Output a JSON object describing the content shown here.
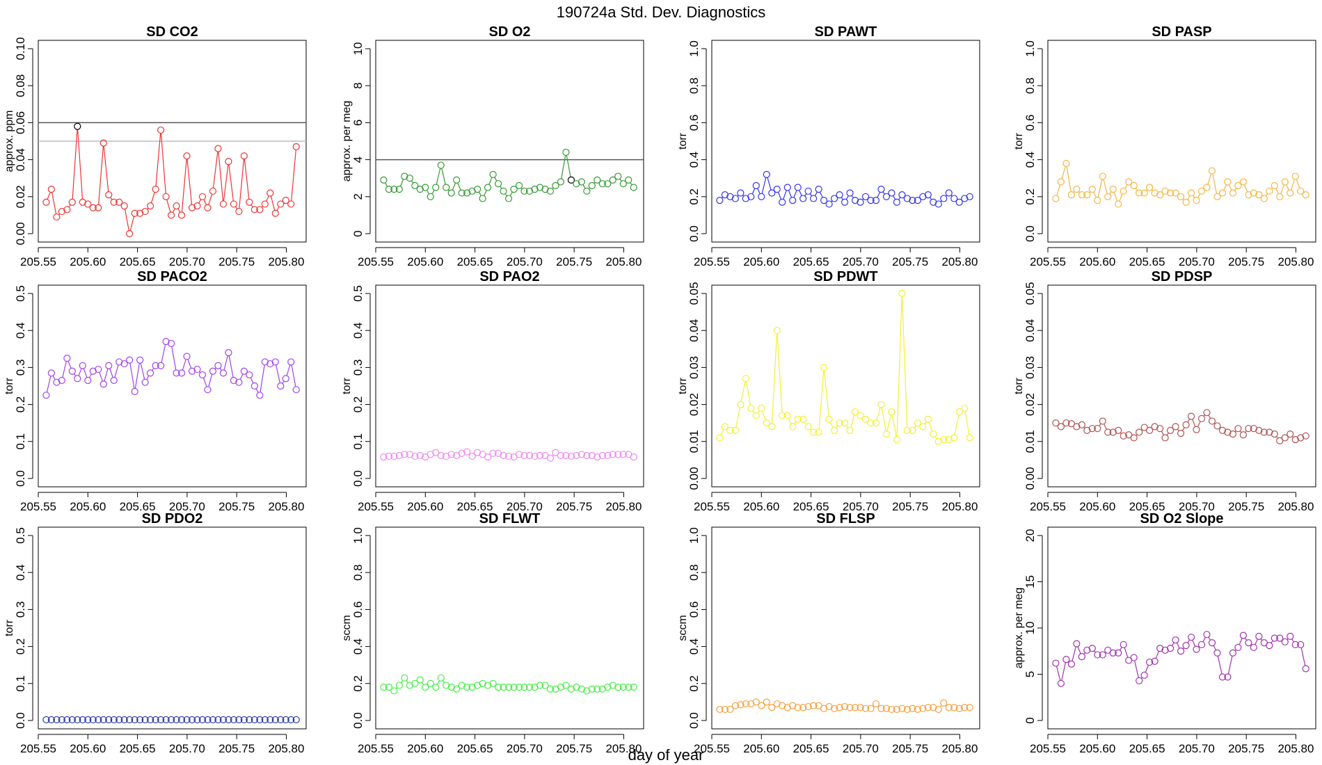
{
  "figure": {
    "title": "190724a   Std. Dev. Diagnostics",
    "xlabel": "day of year"
  },
  "chart_data": [
    {
      "type": "line",
      "title": "SD CO2",
      "ylabel": "approx. ppm",
      "color": "#ee3333",
      "xlim": [
        205.55,
        205.82
      ],
      "ylim": [
        0,
        0.1
      ],
      "xticks": [
        "205.55",
        "205.60",
        "205.65",
        "205.70",
        "205.75",
        "205.80"
      ],
      "yticks": [
        "0.00",
        "0.02",
        "0.04",
        "0.06",
        "0.08",
        "0.10"
      ],
      "hlines": [
        {
          "value": 0.06,
          "color": "#555555"
        },
        {
          "value": 0.05,
          "color": "#bbbbbb"
        }
      ],
      "highlight": {
        "index": 6,
        "color": "#000000"
      },
      "x_start": 205.558,
      "x_step": 0.00525,
      "values": [
        0.017,
        0.024,
        0.009,
        0.012,
        0.013,
        0.017,
        0.058,
        0.017,
        0.016,
        0.014,
        0.014,
        0.049,
        0.021,
        0.017,
        0.017,
        0.015,
        0.0,
        0.011,
        0.011,
        0.012,
        0.015,
        0.024,
        0.056,
        0.02,
        0.01,
        0.015,
        0.01,
        0.042,
        0.014,
        0.015,
        0.02,
        0.014,
        0.023,
        0.046,
        0.016,
        0.039,
        0.016,
        0.012,
        0.042,
        0.017,
        0.013,
        0.013,
        0.016,
        0.022,
        0.011,
        0.016,
        0.018,
        0.016,
        0.047
      ]
    },
    {
      "type": "line",
      "title": "SD O2",
      "ylabel": "approx. per meg",
      "color": "#339933",
      "xlim": [
        205.55,
        205.82
      ],
      "ylim": [
        0,
        10
      ],
      "xticks": [
        "205.55",
        "205.60",
        "205.65",
        "205.70",
        "205.75",
        "205.80"
      ],
      "yticks": [
        "0",
        "2",
        "4",
        "6",
        "8",
        "10"
      ],
      "hlines": [
        {
          "value": 4,
          "color": "#555555"
        }
      ],
      "highlight": {
        "index": 36,
        "color": "#000000"
      },
      "x_start": 205.558,
      "x_step": 0.00525,
      "values": [
        2.9,
        2.4,
        2.4,
        2.4,
        3.1,
        3.0,
        2.6,
        2.4,
        2.5,
        2.0,
        2.5,
        3.7,
        2.5,
        2.2,
        2.9,
        2.2,
        2.2,
        2.3,
        2.4,
        1.9,
        2.5,
        3.2,
        2.7,
        2.3,
        1.9,
        2.4,
        2.6,
        2.3,
        2.3,
        2.4,
        2.5,
        2.4,
        2.3,
        2.6,
        2.8,
        4.4,
        2.9,
        2.7,
        2.8,
        2.3,
        2.6,
        2.9,
        2.7,
        2.7,
        2.9,
        3.1,
        2.7,
        2.9,
        2.5
      ]
    },
    {
      "type": "line",
      "title": "SD PAWT",
      "ylabel": "torr",
      "color": "#3333ee",
      "xlim": [
        205.55,
        205.82
      ],
      "ylim": [
        0,
        1
      ],
      "xticks": [
        "205.55",
        "205.60",
        "205.65",
        "205.70",
        "205.75",
        "205.80"
      ],
      "yticks": [
        "0.0",
        "0.2",
        "0.4",
        "0.6",
        "0.8",
        "1.0"
      ],
      "hlines": [],
      "x_start": 205.558,
      "x_step": 0.00525,
      "values": [
        0.18,
        0.21,
        0.2,
        0.19,
        0.22,
        0.19,
        0.2,
        0.26,
        0.2,
        0.32,
        0.22,
        0.24,
        0.17,
        0.25,
        0.18,
        0.25,
        0.19,
        0.23,
        0.19,
        0.24,
        0.18,
        0.16,
        0.19,
        0.21,
        0.17,
        0.22,
        0.18,
        0.17,
        0.2,
        0.18,
        0.18,
        0.24,
        0.2,
        0.22,
        0.17,
        0.21,
        0.19,
        0.18,
        0.18,
        0.2,
        0.21,
        0.17,
        0.16,
        0.19,
        0.22,
        0.19,
        0.17,
        0.19,
        0.2
      ]
    },
    {
      "type": "line",
      "title": "SD PASP",
      "ylabel": "torr",
      "color": "#f5b540",
      "xlim": [
        205.55,
        205.82
      ],
      "ylim": [
        0,
        1
      ],
      "xticks": [
        "205.55",
        "205.60",
        "205.65",
        "205.70",
        "205.75",
        "205.80"
      ],
      "yticks": [
        "0.0",
        "0.2",
        "0.4",
        "0.6",
        "0.8",
        "1.0"
      ],
      "hlines": [],
      "x_start": 205.558,
      "x_step": 0.00525,
      "values": [
        0.19,
        0.28,
        0.38,
        0.21,
        0.24,
        0.21,
        0.21,
        0.24,
        0.18,
        0.31,
        0.2,
        0.24,
        0.16,
        0.23,
        0.28,
        0.26,
        0.22,
        0.22,
        0.25,
        0.22,
        0.21,
        0.23,
        0.22,
        0.22,
        0.2,
        0.17,
        0.22,
        0.18,
        0.23,
        0.25,
        0.34,
        0.2,
        0.22,
        0.28,
        0.22,
        0.26,
        0.28,
        0.21,
        0.22,
        0.21,
        0.19,
        0.23,
        0.26,
        0.2,
        0.28,
        0.22,
        0.31,
        0.23,
        0.21
      ]
    },
    {
      "type": "line",
      "title": "SD PACO2",
      "ylabel": "torr",
      "color": "#a040ee",
      "xlim": [
        205.55,
        205.82
      ],
      "ylim": [
        0,
        0.5
      ],
      "xticks": [
        "205.55",
        "205.60",
        "205.65",
        "205.70",
        "205.75",
        "205.80"
      ],
      "yticks": [
        "0.0",
        "0.1",
        "0.2",
        "0.3",
        "0.4",
        "0.5"
      ],
      "hlines": [],
      "x_start": 205.558,
      "x_step": 0.00525,
      "values": [
        0.225,
        0.285,
        0.26,
        0.265,
        0.325,
        0.29,
        0.27,
        0.305,
        0.265,
        0.29,
        0.295,
        0.255,
        0.305,
        0.265,
        0.315,
        0.31,
        0.32,
        0.235,
        0.32,
        0.26,
        0.285,
        0.305,
        0.305,
        0.37,
        0.365,
        0.285,
        0.285,
        0.33,
        0.29,
        0.295,
        0.28,
        0.24,
        0.29,
        0.305,
        0.285,
        0.34,
        0.265,
        0.26,
        0.29,
        0.28,
        0.25,
        0.225,
        0.315,
        0.31,
        0.315,
        0.25,
        0.27,
        0.315,
        0.24
      ]
    },
    {
      "type": "line",
      "title": "SD PAO2",
      "ylabel": "torr",
      "color": "#ee88ee",
      "xlim": [
        205.55,
        205.82
      ],
      "ylim": [
        0,
        0.5
      ],
      "xticks": [
        "205.55",
        "205.60",
        "205.65",
        "205.70",
        "205.75",
        "205.80"
      ],
      "yticks": [
        "0.0",
        "0.1",
        "0.2",
        "0.3",
        "0.4",
        "0.5"
      ],
      "hlines": [],
      "x_start": 205.558,
      "x_step": 0.00525,
      "values": [
        0.058,
        0.06,
        0.06,
        0.062,
        0.065,
        0.065,
        0.06,
        0.062,
        0.058,
        0.065,
        0.07,
        0.062,
        0.06,
        0.065,
        0.062,
        0.068,
        0.072,
        0.06,
        0.07,
        0.065,
        0.058,
        0.068,
        0.068,
        0.062,
        0.06,
        0.058,
        0.065,
        0.062,
        0.062,
        0.06,
        0.062,
        0.062,
        0.055,
        0.07,
        0.062,
        0.062,
        0.06,
        0.062,
        0.065,
        0.062,
        0.062,
        0.058,
        0.062,
        0.062,
        0.065,
        0.065,
        0.065,
        0.065,
        0.058
      ]
    },
    {
      "type": "line",
      "title": "SD PDWT",
      "ylabel": "torr",
      "color": "#f2f030",
      "xlim": [
        205.55,
        205.82
      ],
      "ylim": [
        0,
        0.05
      ],
      "xticks": [
        "205.55",
        "205.60",
        "205.65",
        "205.70",
        "205.75",
        "205.80"
      ],
      "yticks": [
        "0.00",
        "0.01",
        "0.02",
        "0.03",
        "0.04",
        "0.05"
      ],
      "hlines": [],
      "x_start": 205.558,
      "x_step": 0.00525,
      "values": [
        0.011,
        0.014,
        0.013,
        0.013,
        0.02,
        0.027,
        0.019,
        0.017,
        0.019,
        0.015,
        0.014,
        0.04,
        0.017,
        0.017,
        0.014,
        0.016,
        0.016,
        0.014,
        0.0125,
        0.0125,
        0.03,
        0.016,
        0.013,
        0.015,
        0.015,
        0.013,
        0.018,
        0.017,
        0.016,
        0.015,
        0.015,
        0.02,
        0.012,
        0.018,
        0.0105,
        0.05,
        0.013,
        0.013,
        0.015,
        0.014,
        0.016,
        0.012,
        0.01,
        0.0105,
        0.0105,
        0.011,
        0.018,
        0.019,
        0.011
      ]
    },
    {
      "type": "line",
      "title": "SD PDSP",
      "ylabel": "torr",
      "color": "#b05050",
      "xlim": [
        205.55,
        205.82
      ],
      "ylim": [
        0,
        0.05
      ],
      "xticks": [
        "205.55",
        "205.60",
        "205.65",
        "205.70",
        "205.75",
        "205.80"
      ],
      "yticks": [
        "0.00",
        "0.01",
        "0.02",
        "0.03",
        "0.04",
        "0.05"
      ],
      "hlines": [],
      "x_start": 205.558,
      "x_step": 0.00525,
      "values": [
        0.015,
        0.014,
        0.015,
        0.0148,
        0.014,
        0.0145,
        0.013,
        0.0135,
        0.0135,
        0.0155,
        0.0125,
        0.0125,
        0.013,
        0.0115,
        0.0118,
        0.011,
        0.0125,
        0.0138,
        0.013,
        0.014,
        0.0135,
        0.011,
        0.013,
        0.014,
        0.0122,
        0.0145,
        0.0168,
        0.0132,
        0.0162,
        0.0178,
        0.0155,
        0.0142,
        0.013,
        0.0125,
        0.012,
        0.0135,
        0.0118,
        0.0135,
        0.0135,
        0.013,
        0.0125,
        0.0125,
        0.012,
        0.0102,
        0.011,
        0.012,
        0.0105,
        0.011,
        0.0115
      ]
    },
    {
      "type": "line",
      "title": "SD PDO2",
      "ylabel": "torr",
      "color": "#2233aa",
      "xlim": [
        205.55,
        205.82
      ],
      "ylim": [
        0,
        0.5
      ],
      "xticks": [
        "205.55",
        "205.60",
        "205.65",
        "205.70",
        "205.75",
        "205.80"
      ],
      "yticks": [
        "0.0",
        "0.1",
        "0.2",
        "0.3",
        "0.4",
        "0.5"
      ],
      "hlines": [],
      "x_start": 205.558,
      "x_step": 0.00525,
      "values": [
        0.002,
        0.002,
        0.002,
        0.002,
        0.002,
        0.002,
        0.002,
        0.002,
        0.002,
        0.002,
        0.002,
        0.002,
        0.002,
        0.002,
        0.002,
        0.002,
        0.002,
        0.002,
        0.002,
        0.002,
        0.002,
        0.002,
        0.002,
        0.002,
        0.002,
        0.002,
        0.002,
        0.002,
        0.002,
        0.002,
        0.002,
        0.002,
        0.002,
        0.002,
        0.002,
        0.002,
        0.002,
        0.002,
        0.002,
        0.002,
        0.002,
        0.002,
        0.002,
        0.002,
        0.002,
        0.002,
        0.002,
        0.002,
        0.002
      ]
    },
    {
      "type": "line",
      "title": "SD FLWT",
      "ylabel": "sccm",
      "color": "#44ee44",
      "xlim": [
        205.55,
        205.82
      ],
      "ylim": [
        0,
        1
      ],
      "xticks": [
        "205.55",
        "205.60",
        "205.65",
        "205.70",
        "205.75",
        "205.80"
      ],
      "yticks": [
        "0.0",
        "0.2",
        "0.4",
        "0.6",
        "0.8",
        "1.0"
      ],
      "hlines": [],
      "x_start": 205.558,
      "x_step": 0.00525,
      "values": [
        0.18,
        0.18,
        0.16,
        0.19,
        0.23,
        0.19,
        0.2,
        0.22,
        0.18,
        0.2,
        0.18,
        0.23,
        0.19,
        0.18,
        0.17,
        0.19,
        0.18,
        0.18,
        0.19,
        0.2,
        0.19,
        0.2,
        0.18,
        0.18,
        0.18,
        0.18,
        0.18,
        0.18,
        0.18,
        0.18,
        0.19,
        0.19,
        0.17,
        0.17,
        0.18,
        0.19,
        0.17,
        0.18,
        0.17,
        0.16,
        0.17,
        0.17,
        0.17,
        0.18,
        0.19,
        0.18,
        0.18,
        0.18,
        0.18
      ]
    },
    {
      "type": "line",
      "title": "SD FLSP",
      "ylabel": "sccm",
      "color": "#f5a040",
      "xlim": [
        205.55,
        205.82
      ],
      "ylim": [
        0,
        1
      ],
      "xticks": [
        "205.55",
        "205.60",
        "205.65",
        "205.70",
        "205.75",
        "205.80"
      ],
      "yticks": [
        "0.0",
        "0.2",
        "0.4",
        "0.6",
        "0.8",
        "1.0"
      ],
      "hlines": [],
      "x_start": 205.558,
      "x_step": 0.00525,
      "values": [
        0.06,
        0.06,
        0.06,
        0.08,
        0.085,
        0.09,
        0.09,
        0.1,
        0.08,
        0.1,
        0.07,
        0.09,
        0.08,
        0.07,
        0.08,
        0.07,
        0.07,
        0.075,
        0.08,
        0.08,
        0.065,
        0.075,
        0.065,
        0.07,
        0.075,
        0.07,
        0.07,
        0.07,
        0.065,
        0.065,
        0.09,
        0.065,
        0.065,
        0.06,
        0.06,
        0.065,
        0.06,
        0.065,
        0.06,
        0.065,
        0.07,
        0.07,
        0.06,
        0.095,
        0.07,
        0.07,
        0.065,
        0.07,
        0.07
      ]
    },
    {
      "type": "line",
      "title": "SD O2 Slope",
      "ylabel": "approx. per meg",
      "color": "#a030b0",
      "xlim": [
        205.55,
        205.82
      ],
      "ylim": [
        0,
        20
      ],
      "xticks": [
        "205.55",
        "205.60",
        "205.65",
        "205.70",
        "205.75",
        "205.80"
      ],
      "yticks": [
        "0",
        "5",
        "10",
        "15",
        "20"
      ],
      "hlines": [],
      "x_start": 205.558,
      "x_step": 0.00525,
      "values": [
        6.2,
        4.0,
        6.6,
        6.1,
        8.3,
        6.9,
        7.6,
        7.8,
        7.1,
        7.1,
        7.6,
        7.3,
        7.3,
        8.2,
        6.5,
        6.8,
        4.3,
        4.9,
        6.3,
        6.4,
        7.8,
        7.6,
        7.8,
        8.7,
        7.5,
        8.1,
        9.0,
        7.7,
        8.2,
        9.3,
        8.4,
        7.3,
        4.7,
        4.7,
        7.3,
        7.9,
        9.2,
        8.4,
        7.9,
        9.1,
        8.4,
        8.1,
        8.9,
        8.9,
        8.5,
        9.1,
        8.2,
        8.2,
        5.6
      ]
    }
  ]
}
